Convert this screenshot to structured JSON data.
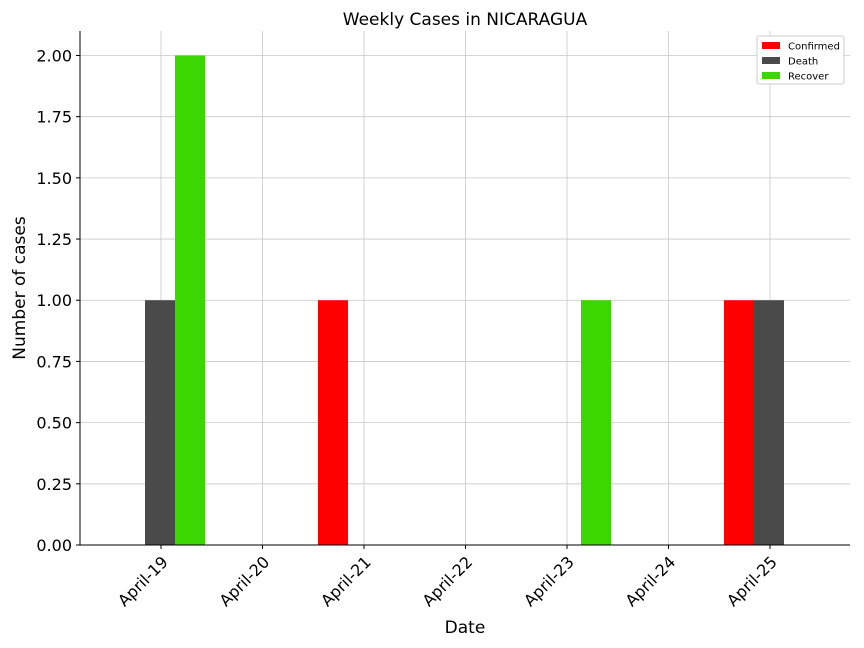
{
  "chart_data": {
    "type": "bar",
    "title": "Weekly Cases in NICARAGUA",
    "xlabel": "Date",
    "ylabel": "Number of cases",
    "categories": [
      "April-19",
      "April-20",
      "April-21",
      "April-22",
      "April-23",
      "April-24",
      "April-25"
    ],
    "ylim": [
      0,
      2.1
    ],
    "yticks": [
      "0.00",
      "0.25",
      "0.50",
      "0.75",
      "1.00",
      "1.25",
      "1.50",
      "1.75",
      "2.00"
    ],
    "grid": true,
    "legend_position": "top-right",
    "series": [
      {
        "name": "Confirmed",
        "color": "#ff0000",
        "values": [
          0,
          0,
          1,
          0,
          0,
          0,
          1
        ]
      },
      {
        "name": "Death",
        "color": "#4a4a4a",
        "values": [
          1,
          0,
          0,
          0,
          0,
          0,
          1
        ]
      },
      {
        "name": "Recover",
        "color": "#3cd600",
        "values": [
          2,
          0,
          0,
          0,
          1,
          0,
          0
        ]
      }
    ]
  }
}
